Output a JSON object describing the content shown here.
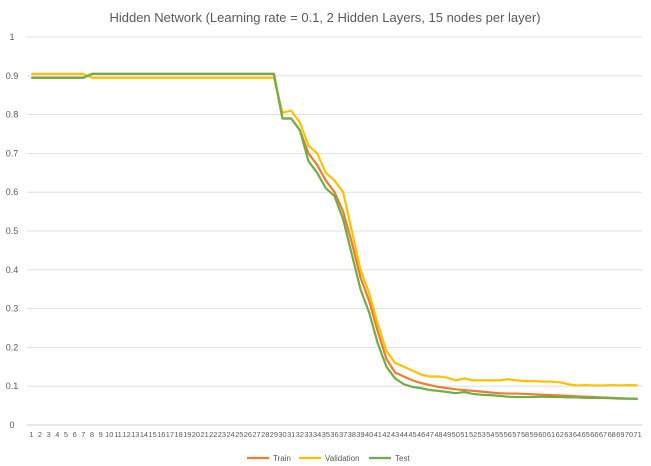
{
  "chart_data": {
    "type": "line",
    "title": "Hidden Network (Learning rate = 0.1, 2 Hidden Layers, 15 nodes per layer)",
    "xlabel": "",
    "ylabel": "",
    "ylim": [
      0,
      1
    ],
    "yticks": [
      "0",
      "0.1",
      "0.2",
      "0.3",
      "0.4",
      "0.5",
      "0.6",
      "0.7",
      "0.8",
      "0.9",
      "1"
    ],
    "categories": [
      "1",
      "2",
      "3",
      "4",
      "5",
      "6",
      "7",
      "8",
      "9",
      "10",
      "11",
      "12",
      "13",
      "14",
      "15",
      "16",
      "17",
      "18",
      "19",
      "20",
      "21",
      "22",
      "23",
      "24",
      "25",
      "26",
      "27",
      "28",
      "29",
      "30",
      "31",
      "32",
      "33",
      "34",
      "35",
      "36",
      "37",
      "38",
      "39",
      "40",
      "41",
      "42",
      "43",
      "44",
      "45",
      "46",
      "47",
      "48",
      "49",
      "50",
      "51",
      "52",
      "53",
      "54",
      "55",
      "56",
      "57",
      "58",
      "59",
      "60",
      "61",
      "62",
      "63",
      "64",
      "65",
      "66",
      "67",
      "68",
      "69",
      "70",
      "71"
    ],
    "grid": true,
    "legend_position": "bottom",
    "series": [
      {
        "name": "Train",
        "color": "#ED7D31",
        "values": [
          0.895,
          0.895,
          0.895,
          0.895,
          0.895,
          0.895,
          0.895,
          0.905,
          0.905,
          0.905,
          0.905,
          0.905,
          0.905,
          0.905,
          0.905,
          0.905,
          0.905,
          0.905,
          0.905,
          0.905,
          0.905,
          0.905,
          0.905,
          0.905,
          0.905,
          0.905,
          0.905,
          0.905,
          0.905,
          0.79,
          0.79,
          0.76,
          0.7,
          0.67,
          0.63,
          0.6,
          0.55,
          0.47,
          0.38,
          0.32,
          0.24,
          0.17,
          0.135,
          0.125,
          0.115,
          0.108,
          0.103,
          0.098,
          0.095,
          0.092,
          0.09,
          0.088,
          0.086,
          0.084,
          0.082,
          0.081,
          0.081,
          0.08,
          0.079,
          0.078,
          0.077,
          0.076,
          0.075,
          0.074,
          0.073,
          0.072,
          0.071,
          0.07,
          0.069,
          0.068,
          0.068
        ]
      },
      {
        "name": "Validation",
        "color": "#FFC000",
        "values": [
          0.905,
          0.905,
          0.905,
          0.905,
          0.905,
          0.905,
          0.905,
          0.895,
          0.895,
          0.895,
          0.895,
          0.895,
          0.895,
          0.895,
          0.895,
          0.895,
          0.895,
          0.895,
          0.895,
          0.895,
          0.895,
          0.895,
          0.895,
          0.895,
          0.895,
          0.895,
          0.895,
          0.895,
          0.895,
          0.805,
          0.81,
          0.78,
          0.72,
          0.7,
          0.65,
          0.63,
          0.6,
          0.5,
          0.4,
          0.34,
          0.26,
          0.19,
          0.16,
          0.15,
          0.14,
          0.13,
          0.125,
          0.125,
          0.122,
          0.115,
          0.12,
          0.115,
          0.115,
          0.115,
          0.115,
          0.118,
          0.115,
          0.113,
          0.113,
          0.112,
          0.112,
          0.11,
          0.105,
          0.102,
          0.103,
          0.102,
          0.102,
          0.103,
          0.102,
          0.103,
          0.102
        ]
      },
      {
        "name": "Test",
        "color": "#70AD47",
        "values": [
          0.895,
          0.895,
          0.895,
          0.895,
          0.895,
          0.895,
          0.895,
          0.905,
          0.905,
          0.905,
          0.905,
          0.905,
          0.905,
          0.905,
          0.905,
          0.905,
          0.905,
          0.905,
          0.905,
          0.905,
          0.905,
          0.905,
          0.905,
          0.905,
          0.905,
          0.905,
          0.905,
          0.905,
          0.905,
          0.79,
          0.79,
          0.76,
          0.68,
          0.65,
          0.61,
          0.59,
          0.53,
          0.44,
          0.35,
          0.29,
          0.21,
          0.15,
          0.12,
          0.105,
          0.098,
          0.095,
          0.09,
          0.088,
          0.085,
          0.082,
          0.085,
          0.08,
          0.078,
          0.077,
          0.075,
          0.073,
          0.072,
          0.072,
          0.072,
          0.073,
          0.072,
          0.072,
          0.071,
          0.071,
          0.07,
          0.07,
          0.07,
          0.069,
          0.068,
          0.068,
          0.067
        ]
      }
    ]
  }
}
